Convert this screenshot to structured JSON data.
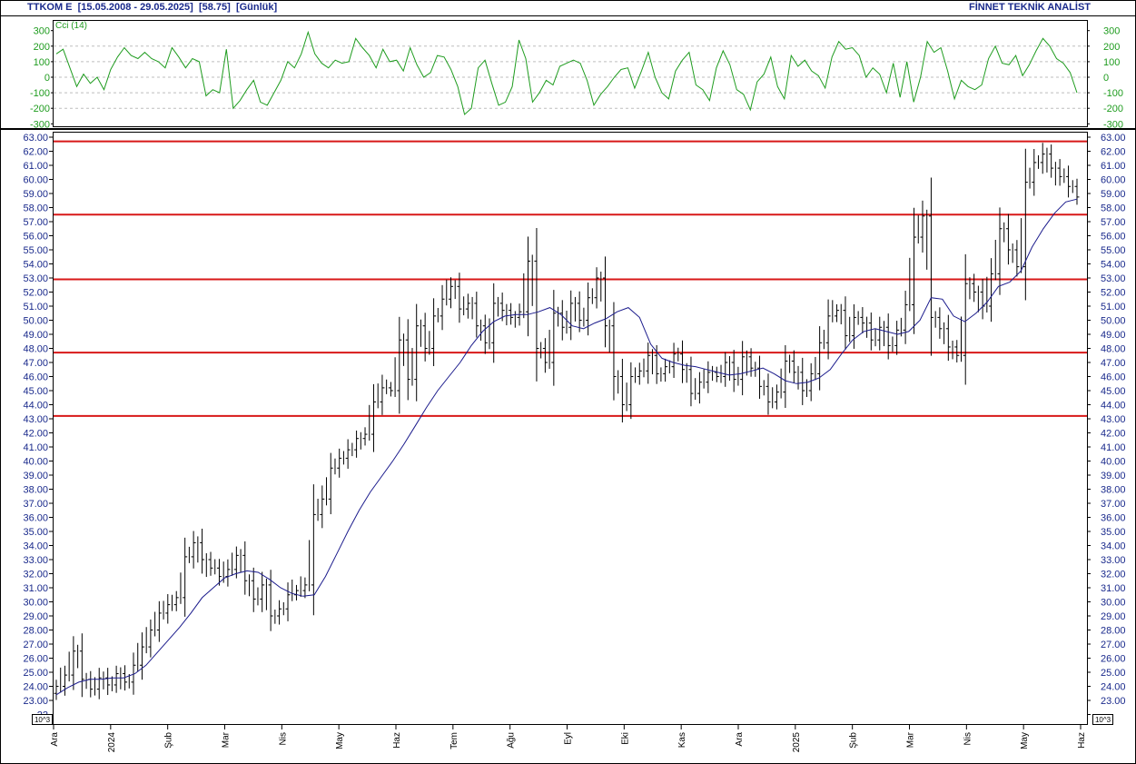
{
  "header": {
    "symbol": "TTKOM E",
    "range": "[15.05.2008 - 29.05.2025]",
    "last": "[58.75]",
    "period": "[Günlük]",
    "brand": "FİNNET TEKNİK ANALİST"
  },
  "colors": {
    "price_bars": "#000000",
    "moving_average": "#1b1b8c",
    "resistance_lines": "#d81818",
    "cci_line": "#1f9c1f",
    "axis_text": "#1a2a8c",
    "grid": "#bdbdbd"
  },
  "chart_data": [
    {
      "type": "line",
      "panel": "indicator",
      "title": "Cci (14)",
      "y_ticks": [
        "300",
        "200",
        "100",
        "0",
        "-100",
        "-200",
        "-300"
      ],
      "ylim": [
        -300,
        300
      ],
      "grid": true,
      "series": [
        {
          "name": "Cci (14)",
          "values": [
            150,
            180,
            60,
            -60,
            20,
            -40,
            0,
            -80,
            50,
            130,
            190,
            140,
            120,
            160,
            120,
            100,
            60,
            190,
            130,
            60,
            120,
            100,
            -120,
            -80,
            -100,
            180,
            -200,
            -150,
            -80,
            -20,
            -160,
            -180,
            -100,
            -20,
            100,
            60,
            150,
            290,
            150,
            90,
            60,
            110,
            90,
            100,
            250,
            190,
            140,
            60,
            180,
            100,
            110,
            40,
            190,
            80,
            0,
            30,
            140,
            130,
            50,
            -60,
            -240,
            -200,
            60,
            110,
            -40,
            -180,
            -160,
            -60,
            240,
            120,
            -160,
            -100,
            -20,
            -50,
            70,
            90,
            110,
            90,
            -20,
            -180,
            -110,
            -60,
            0,
            50,
            60,
            -70,
            40,
            160,
            0,
            -100,
            -140,
            40,
            110,
            160,
            -50,
            -80,
            -150,
            60,
            170,
            80,
            -80,
            -110,
            -210,
            -30,
            20,
            130,
            -60,
            -140,
            140,
            70,
            110,
            40,
            10,
            -70,
            130,
            230,
            180,
            190,
            140,
            0,
            60,
            20,
            -100,
            90,
            -130,
            100,
            -160,
            0,
            230,
            160,
            190,
            40,
            -140,
            -20,
            -60,
            -80,
            -50,
            120,
            200,
            90,
            80,
            140,
            10,
            80,
            170,
            250,
            200,
            120,
            90,
            30,
            -100
          ]
        }
      ]
    },
    {
      "type": "bar",
      "subtype": "ohlc",
      "panel": "price",
      "y_ticks": [
        "63.00",
        "62.00",
        "61.00",
        "60.00",
        "59.00",
        "58.00",
        "57.00",
        "56.00",
        "55.00",
        "54.00",
        "53.00",
        "52.00",
        "51.00",
        "50.00",
        "49.00",
        "48.00",
        "47.00",
        "46.00",
        "45.00",
        "44.00",
        "43.00",
        "42.00",
        "41.00",
        "40.00",
        "39.00",
        "38.00",
        "37.00",
        "36.00",
        "35.00",
        "34.00",
        "33.00",
        "32.00",
        "31.00",
        "30.00",
        "29.00",
        "28.00",
        "27.00",
        "26.00",
        "25.00",
        "24.00",
        "23.00",
        "22"
      ],
      "ylim": [
        22,
        63.4
      ],
      "scale_note": "10^3",
      "x_ticks": [
        "Ara",
        "2024",
        "Şub",
        "Mar",
        "Nis",
        "May",
        "Haz",
        "Tem",
        "Ağu",
        "Eyl",
        "Eki",
        "Kas",
        "Ara",
        "2025",
        "Şub",
        "Mar",
        "Nis",
        "May",
        "Haz"
      ],
      "horizontal_levels": [
        62.7,
        57.5,
        52.9,
        47.7,
        43.2
      ],
      "series": [
        {
          "name": "price",
          "close": [
            24.0,
            24.8,
            26.5,
            24.5,
            23.8,
            24.6,
            24.1,
            24.9,
            24.3,
            25.5,
            26.8,
            28.0,
            29.2,
            29.8,
            30.3,
            33.2,
            34.2,
            33.0,
            32.4,
            31.8,
            32.3,
            33.3,
            31.5,
            30.2,
            31.2,
            29.0,
            29.5,
            30.5,
            30.8,
            31.2,
            36.2,
            37.3,
            39.5,
            40.2,
            40.8,
            41.6,
            41.9,
            44.2,
            45.2,
            45.0,
            48.6,
            45.8,
            49.6,
            48.0,
            50.3,
            51.5,
            52.4,
            50.8,
            51.2,
            49.6,
            48.4,
            51.2,
            50.7,
            50.2,
            50.6,
            54.2,
            48.0,
            47.0,
            50.5,
            49.5,
            51.2,
            50.0,
            51.6,
            53.0,
            49.6,
            46.0,
            44.0,
            46.0,
            46.4,
            47.5,
            46.2,
            46.7,
            47.6,
            46.5,
            44.8,
            45.6,
            46.3,
            46.0,
            47.0,
            45.8,
            47.4,
            46.6,
            45.3,
            44.2,
            44.9,
            47.1,
            46.3,
            45.0,
            46.2,
            48.4,
            50.3,
            50.7,
            48.9,
            50.2,
            49.8,
            48.6,
            49.5,
            48.2,
            49.3,
            51.1,
            55.9,
            57.4,
            50.2,
            49.4,
            48.1,
            47.5,
            52.6,
            52.0,
            51.0,
            53.3,
            56.5,
            55.0,
            53.8,
            59.8,
            61.2,
            61.8,
            60.8,
            60.2,
            59.5,
            58.75
          ]
        },
        {
          "name": "moving average",
          "values": [
            23.4,
            23.9,
            24.3,
            24.5,
            24.5,
            24.6,
            24.6,
            24.9,
            25.5,
            26.4,
            27.3,
            28.2,
            29.2,
            30.3,
            31.0,
            31.7,
            32.0,
            32.2,
            32.1,
            31.6,
            31.0,
            30.6,
            30.4,
            30.5,
            31.8,
            33.4,
            35.0,
            36.5,
            37.8,
            38.9,
            40.0,
            41.2,
            42.5,
            43.8,
            45.0,
            46.0,
            47.0,
            48.2,
            49.2,
            49.9,
            50.3,
            50.4,
            50.4,
            50.6,
            50.9,
            50.4,
            49.6,
            49.4,
            49.8,
            50.1,
            50.6,
            50.9,
            50.2,
            48.3,
            47.3,
            47.0,
            46.8,
            46.7,
            46.5,
            46.3,
            46.1,
            46.2,
            46.4,
            46.6,
            46.2,
            45.7,
            45.5,
            45.6,
            45.9,
            46.5,
            47.6,
            48.6,
            49.2,
            49.4,
            49.2,
            49.0,
            49.2,
            50.0,
            51.6,
            51.5,
            50.3,
            49.9,
            50.5,
            51.3,
            52.4,
            52.7,
            53.5,
            55.2,
            56.5,
            57.6,
            58.4,
            58.6
          ]
        }
      ]
    }
  ]
}
